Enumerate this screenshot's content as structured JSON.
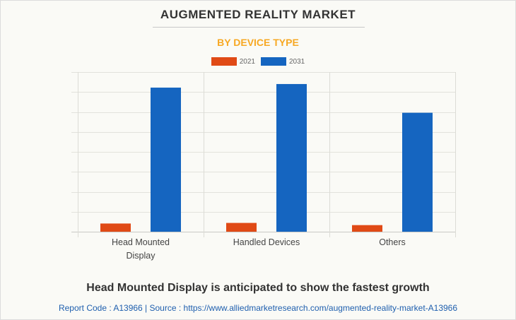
{
  "title": "AUGMENTED REALITY MARKET",
  "subtitle": "BY DEVICE TYPE",
  "colors": {
    "series_2021": "#e04a16",
    "series_2031": "#1565c0",
    "subtitle": "#f7a823",
    "grid": "#e2e2dc",
    "footer_link": "#1f5fae"
  },
  "chart_data": {
    "type": "bar",
    "title": "AUGMENTED REALITY MARKET",
    "subtitle": "BY DEVICE TYPE",
    "categories": [
      "Head Mounted Display",
      "Handled Devices",
      "Others"
    ],
    "category_label_lines": [
      [
        "Head Mounted",
        "Display"
      ],
      [
        "Handled Devices"
      ],
      [
        "Others"
      ]
    ],
    "series": [
      {
        "name": "2021",
        "color": "#e04a16",
        "values": [
          0.41,
          0.44,
          0.33
        ]
      },
      {
        "name": "2031",
        "color": "#1565c0",
        "values": [
          7.22,
          7.4,
          5.96
        ]
      }
    ],
    "value_units": "relative (gridline intervals; y-axis tick labels not shown)",
    "xlabel": "",
    "ylabel": "",
    "ylim": [
      0,
      8
    ],
    "gridlines": 8,
    "grid": true,
    "legend": {
      "position": "top-center",
      "entries": [
        "2021",
        "2031"
      ]
    }
  },
  "footer": {
    "headline": "Head Mounted Display is anticipated to show the fastest growth",
    "source": "Report Code : A13966  |  Source : https://www.alliedmarketresearch.com/augmented-reality-market-A13966"
  }
}
